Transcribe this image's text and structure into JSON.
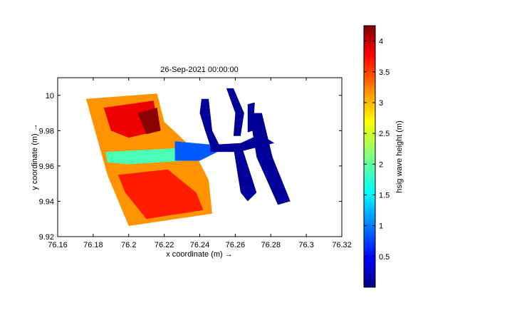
{
  "chart_data": {
    "type": "heatmap",
    "title": "26-Sep-2021 00:00:00",
    "xlabel": "x coordinate (m) →",
    "ylabel": "y coordinate (m) →",
    "xlim": [
      76.16,
      76.32
    ],
    "ylim": [
      9.92,
      10.01
    ],
    "xticks": [
      76.16,
      76.18,
      76.2,
      76.22,
      76.24,
      76.26,
      76.28,
      76.3,
      76.32
    ],
    "xtick_labels": [
      "76.16",
      "76.18",
      "76.2",
      "76.22",
      "76.24",
      "76.26",
      "76.28",
      "76.3",
      "76.32"
    ],
    "yticks": [
      9.92,
      9.94,
      9.96,
      9.98,
      10
    ],
    "ytick_labels": [
      "9.92",
      "9.94",
      "9.96",
      "9.98",
      "10"
    ],
    "grid": false,
    "colormap": "jet",
    "colorbar": {
      "label": "hsig wave height (m)",
      "range": [
        0,
        4.25
      ],
      "ticks": [
        0.5,
        1,
        1.5,
        2,
        2.5,
        3,
        3.5,
        4
      ],
      "tick_labels": [
        "0.5",
        "1",
        "1.5",
        "2",
        "2.5",
        "3",
        "3.5",
        "4"
      ],
      "placement": "right"
    },
    "regions": [
      {
        "polygon": [
          [
            76.176,
            9.998
          ],
          [
            76.216,
            10.001
          ],
          [
            76.22,
            9.985
          ],
          [
            76.236,
            9.97
          ],
          [
            76.245,
            9.952
          ],
          [
            76.247,
            9.933
          ],
          [
            76.2,
            9.926
          ],
          [
            76.188,
            9.955
          ]
        ],
        "value": 3.1
      },
      {
        "polygon": [
          [
            76.186,
            9.993
          ],
          [
            76.214,
            9.997
          ],
          [
            76.217,
            9.98
          ],
          [
            76.2,
            9.976
          ],
          [
            76.19,
            9.98
          ]
        ],
        "value": 3.8
      },
      {
        "polygon": [
          [
            76.205,
            9.99
          ],
          [
            76.216,
            9.993
          ],
          [
            76.218,
            9.98
          ],
          [
            76.21,
            9.978
          ]
        ],
        "value": 4.2
      },
      {
        "polygon": [
          [
            76.194,
            9.955
          ],
          [
            76.222,
            9.958
          ],
          [
            76.238,
            9.945
          ],
          [
            76.242,
            9.935
          ],
          [
            76.21,
            9.93
          ],
          [
            76.198,
            9.945
          ]
        ],
        "value": 3.6
      },
      {
        "polygon": [
          [
            76.187,
            9.968
          ],
          [
            76.226,
            9.97
          ],
          [
            76.232,
            9.963
          ],
          [
            76.2,
            9.961
          ],
          [
            76.188,
            9.962
          ]
        ],
        "value": 1.9
      },
      {
        "polygon": [
          [
            76.226,
            9.974
          ],
          [
            76.248,
            9.972
          ],
          [
            76.25,
            9.968
          ],
          [
            76.24,
            9.963
          ],
          [
            76.226,
            9.963
          ]
        ],
        "value": 0.9
      },
      {
        "polygon": [
          [
            76.246,
            9.972
          ],
          [
            76.263,
            9.973
          ],
          [
            76.274,
            9.978
          ],
          [
            76.282,
            9.973
          ],
          [
            76.262,
            9.968
          ],
          [
            76.246,
            9.968
          ]
        ],
        "value": 0.1
      },
      {
        "polygon": [
          [
            76.241,
            9.998
          ],
          [
            76.245,
            9.998
          ],
          [
            76.247,
            9.98
          ],
          [
            76.251,
            9.972
          ],
          [
            76.246,
            9.971
          ],
          [
            76.243,
            9.98
          ],
          [
            76.24,
            9.99
          ]
        ],
        "value": 0.1
      },
      {
        "polygon": [
          [
            76.255,
            10.004
          ],
          [
            76.259,
            10.004
          ],
          [
            76.265,
            9.99
          ],
          [
            76.263,
            9.977
          ],
          [
            76.259,
            9.977
          ],
          [
            76.26,
            9.99
          ]
        ],
        "value": 0.1
      },
      {
        "polygon": [
          [
            76.267,
            9.995
          ],
          [
            76.271,
            9.996
          ],
          [
            76.27,
            9.98
          ],
          [
            76.267,
            9.979
          ]
        ],
        "value": 0.1
      },
      {
        "polygon": [
          [
            76.259,
            9.97
          ],
          [
            76.264,
            9.97
          ],
          [
            76.272,
            9.945
          ],
          [
            76.267,
            9.94
          ],
          [
            76.263,
            9.945
          ]
        ],
        "value": 0.1
      },
      {
        "polygon": [
          [
            76.268,
            9.99
          ],
          [
            76.275,
            9.99
          ],
          [
            76.281,
            9.965
          ],
          [
            76.291,
            9.94
          ],
          [
            76.284,
            9.938
          ],
          [
            76.272,
            9.965
          ]
        ],
        "value": 0.1
      }
    ]
  }
}
